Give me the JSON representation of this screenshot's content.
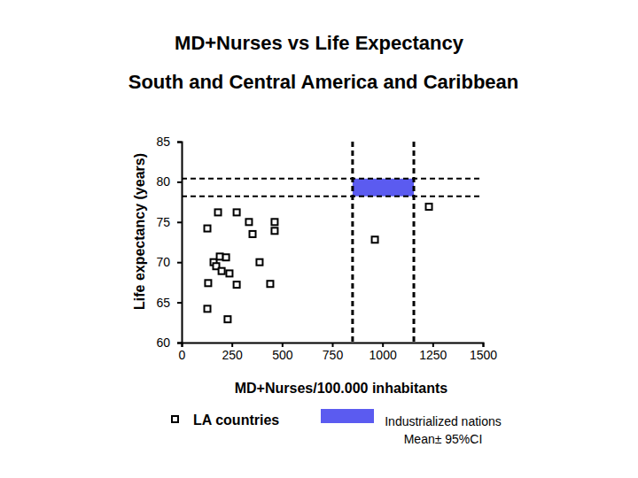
{
  "chart_data": {
    "type": "scatter",
    "title": "MD+Nurses vs Life Expectancy",
    "subtitle": "South and Central America and Caribbean",
    "x_label": "MD+Nurses/100.000 inhabitants",
    "y_label": "Life expectancy (years)",
    "xlim": [
      0,
      1500
    ],
    "xticks": [
      0,
      250,
      500,
      750,
      1000,
      1250,
      1500
    ],
    "ylim": [
      60,
      85
    ],
    "yticks": [
      60,
      65,
      70,
      75,
      80,
      85
    ],
    "grid": false,
    "legend": "bottom",
    "series": [
      {
        "name": "LA countries",
        "type": "scatter",
        "marker": "square",
        "color": "#000000",
        "x": [
          181,
          274,
          128,
          335,
          353,
          463,
          463,
          962,
          1231,
          159,
          190,
          221,
          172,
          199,
          238,
          388,
          132,
          274,
          441,
          128,
          229
        ],
        "values": [
          76.2,
          76.2,
          74.2,
          75.0,
          73.5,
          75.0,
          73.9,
          72.8,
          76.9,
          70.0,
          70.7,
          70.6,
          69.5,
          68.9,
          68.6,
          70.0,
          67.4,
          67.2,
          67.3,
          64.2,
          62.9
        ]
      },
      {
        "name": "Industrialized nations",
        "ci_label": "Mean± 95%CI",
        "type": "rect",
        "color": "#5b5bf0",
        "line_style": "dashed",
        "x_range": [
          851,
          1156
        ],
        "y_range": [
          78.2,
          80.4
        ]
      }
    ]
  }
}
